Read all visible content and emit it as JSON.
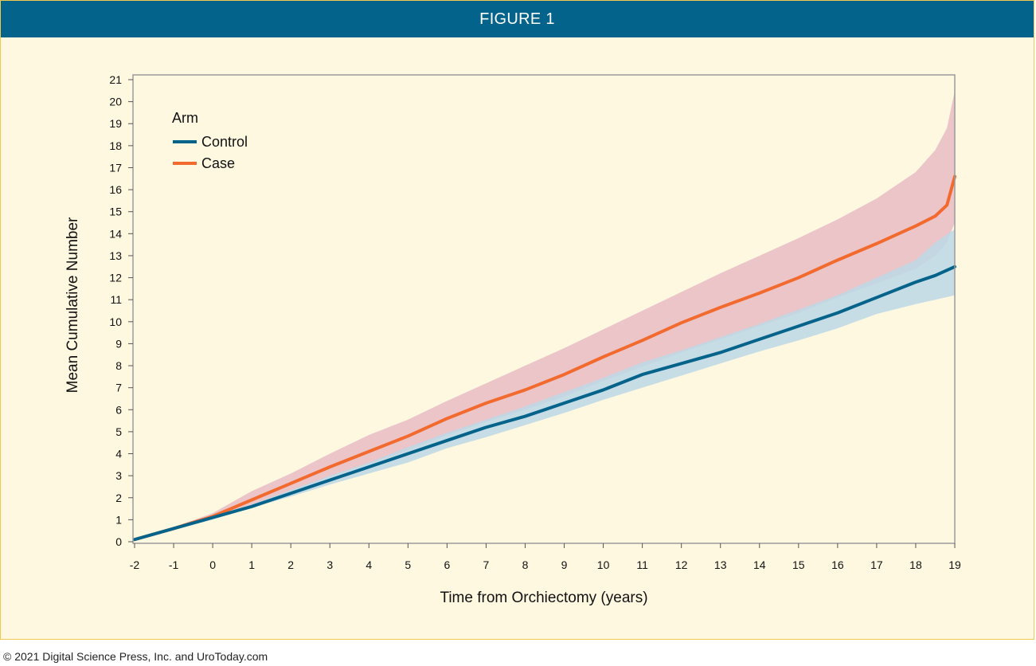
{
  "header": {
    "title": "FIGURE 1"
  },
  "footer": {
    "copyright": "© 2021 Digital Science Press, Inc. and UroToday.com"
  },
  "colors": {
    "header_bg": "#03638a",
    "panel_bg": "#fff8e1",
    "control_line": "#03638a",
    "control_band": "#bcd8e6",
    "case_line": "#f26a2e",
    "case_band": "#ebc5c8"
  },
  "chart_data": {
    "type": "line",
    "xlabel": "Time from Orchiectomy (years)",
    "ylabel": "Mean Cumulative Number",
    "xlim": [
      -2,
      19
    ],
    "ylim": [
      0,
      21
    ],
    "xticks": [
      -2,
      -1,
      0,
      1,
      2,
      3,
      4,
      5,
      6,
      7,
      8,
      9,
      10,
      11,
      12,
      13,
      14,
      15,
      16,
      17,
      18,
      19
    ],
    "yticks": [
      0,
      1,
      2,
      3,
      4,
      5,
      6,
      7,
      8,
      9,
      10,
      11,
      12,
      13,
      14,
      15,
      16,
      17,
      18,
      19,
      20,
      21
    ],
    "grid": false,
    "legend": {
      "title": "Arm",
      "position": "top-left"
    },
    "series": [
      {
        "name": "Control",
        "color": "#03638a",
        "band_color": "#bcd8e6",
        "x": [
          -2,
          -1,
          0,
          1,
          2,
          3,
          4,
          5,
          6,
          7,
          8,
          9,
          10,
          11,
          12,
          13,
          14,
          15,
          16,
          17,
          18,
          18.5,
          19
        ],
        "y": [
          0.1,
          0.6,
          1.1,
          1.6,
          2.2,
          2.8,
          3.4,
          4.0,
          4.6,
          5.2,
          5.7,
          6.3,
          6.9,
          7.6,
          8.1,
          8.6,
          9.2,
          9.8,
          10.4,
          11.1,
          11.8,
          12.1,
          12.5
        ],
        "lower": [
          0.1,
          0.55,
          1.0,
          1.55,
          2.05,
          2.6,
          3.1,
          3.6,
          4.25,
          4.75,
          5.3,
          5.85,
          6.45,
          7.0,
          7.55,
          8.1,
          8.65,
          9.15,
          9.7,
          10.35,
          10.8,
          11.0,
          11.2
        ],
        "upper": [
          0.1,
          0.65,
          1.15,
          1.7,
          2.35,
          3.0,
          3.6,
          4.3,
          4.95,
          5.55,
          6.15,
          6.8,
          7.45,
          8.15,
          8.7,
          9.3,
          9.9,
          10.55,
          11.2,
          12.0,
          12.8,
          13.6,
          14.2
        ]
      },
      {
        "name": "Case",
        "color": "#f26a2e",
        "band_color": "#ebc5c8",
        "x": [
          -2,
          -1,
          0,
          1,
          2,
          3,
          4,
          5,
          6,
          7,
          8,
          9,
          10,
          11,
          12,
          13,
          14,
          15,
          16,
          17,
          18,
          18.5,
          18.8,
          19
        ],
        "y": [
          0.1,
          0.6,
          1.15,
          1.9,
          2.65,
          3.4,
          4.1,
          4.8,
          5.6,
          6.3,
          6.9,
          7.6,
          8.4,
          9.15,
          9.95,
          10.65,
          11.3,
          12.0,
          12.8,
          13.55,
          14.35,
          14.8,
          15.3,
          16.6
        ],
        "lower": [
          0.1,
          0.55,
          1.05,
          1.6,
          2.3,
          2.95,
          3.55,
          4.15,
          4.85,
          5.45,
          6.0,
          6.6,
          7.3,
          7.95,
          8.6,
          9.2,
          9.8,
          10.4,
          11.1,
          11.75,
          12.4,
          13.0,
          13.6,
          14.5
        ],
        "upper": [
          0.1,
          0.65,
          1.3,
          2.3,
          3.1,
          4.0,
          4.85,
          5.55,
          6.4,
          7.2,
          8.0,
          8.8,
          9.65,
          10.5,
          11.35,
          12.2,
          13.0,
          13.8,
          14.65,
          15.6,
          16.8,
          17.8,
          18.8,
          20.5
        ]
      }
    ]
  }
}
